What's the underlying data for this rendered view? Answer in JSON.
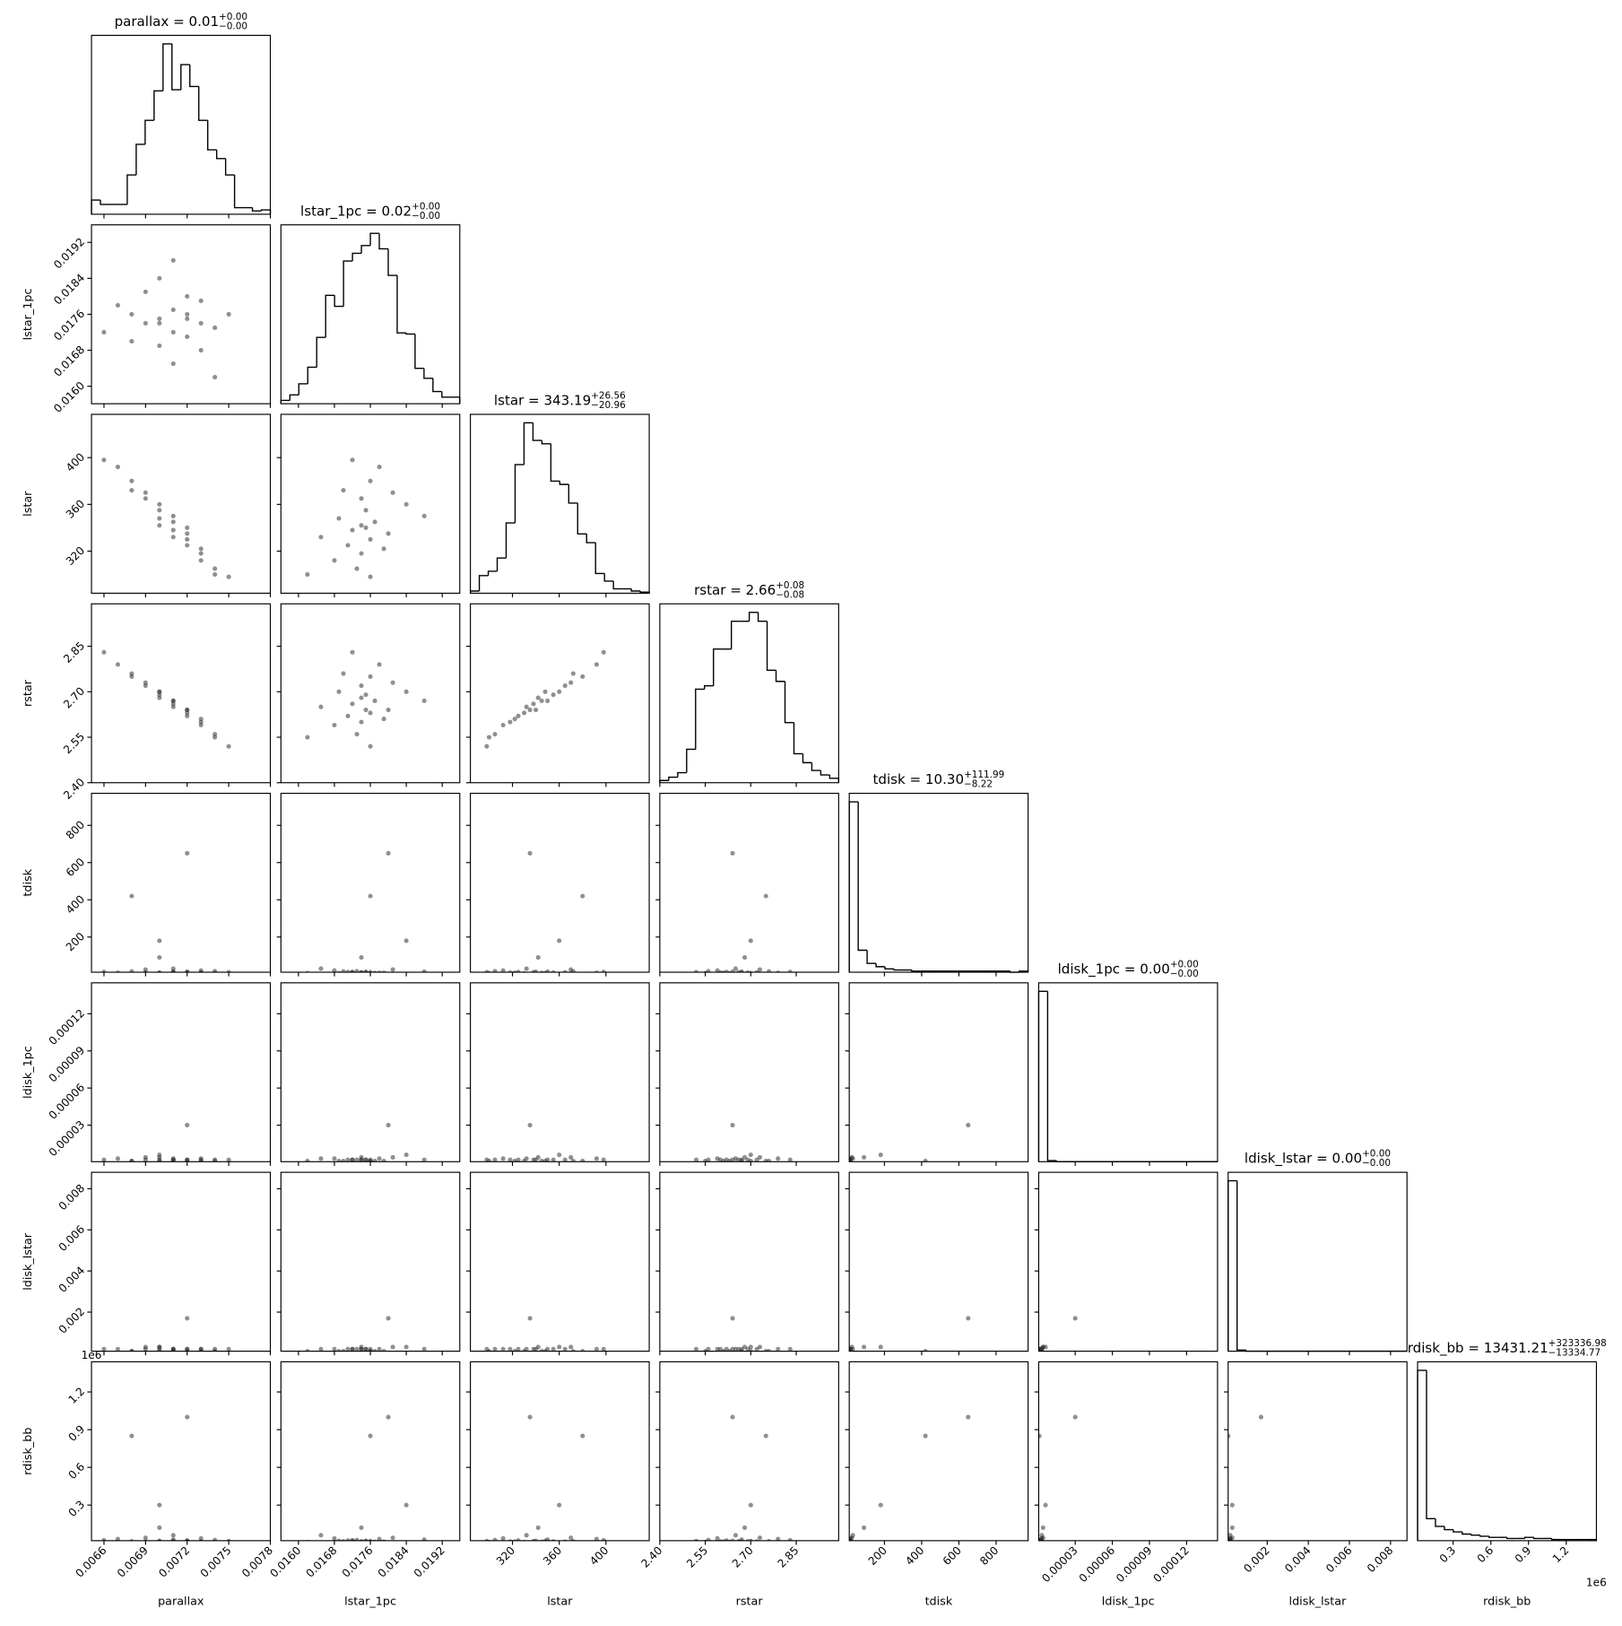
{
  "chart_data": {
    "type": "corner",
    "hist_bins": 20,
    "parameters": [
      {
        "label": "parallax",
        "title": "parallax = 0.01",
        "title_plus": "+0.00",
        "title_minus": "−0.00",
        "xlim": [
          0.00651,
          0.0078
        ],
        "ticks": [
          0.0066,
          0.0069,
          0.0072,
          0.0075,
          0.0078
        ],
        "hist_counts": [
          13,
          9,
          9,
          9,
          36,
          64,
          86,
          113,
          156,
          114,
          137,
          117,
          86,
          59,
          51,
          36,
          6,
          6,
          3,
          4
        ],
        "samples": [
          0.0066,
          0.0067,
          0.0068,
          0.0068,
          0.0069,
          0.0069,
          0.007,
          0.007,
          0.007,
          0.0071,
          0.0071,
          0.0071,
          0.0071,
          0.0072,
          0.0072,
          0.0072,
          0.0073,
          0.0073,
          0.0073,
          0.0074,
          0.0074,
          0.0075,
          0.007,
          0.0072
        ]
      },
      {
        "label": "lstar_1pc",
        "title": "lstar_1pc = 0.02",
        "title_plus": "+0.00",
        "title_minus": "−0.00",
        "xlim": [
          0.01561,
          0.01959
        ],
        "ticks": [
          {
            "value": 0.016,
            "label": "0.0160"
          },
          0.0168,
          0.0176,
          0.0184,
          0.0192
        ],
        "hist_counts": [
          3,
          8,
          18,
          33,
          60,
          98,
          88,
          129,
          136,
          143,
          154,
          140,
          116,
          64,
          63,
          32,
          23,
          11,
          6,
          6
        ],
        "samples": [
          0.0172,
          0.0178,
          0.017,
          0.0176,
          0.0174,
          0.0181,
          0.0169,
          0.0175,
          0.0184,
          0.0172,
          0.0177,
          0.0165,
          0.0188,
          0.0176,
          0.0171,
          0.018,
          0.0174,
          0.0168,
          0.0179,
          0.0173,
          0.0162,
          0.0176,
          0.0174,
          0.0175
        ]
      },
      {
        "label": "lstar",
        "title": "lstar = 343.19",
        "title_plus": "+26.56",
        "title_minus": "−20.96",
        "xlim": [
          284,
          437
        ],
        "ticks": [
          320,
          360,
          400
        ],
        "hist_counts": [
          2,
          16,
          20,
          32,
          64,
          117,
          155,
          139,
          136,
          102,
          99,
          82,
          54,
          46,
          18,
          11,
          4,
          4,
          2,
          1
        ],
        "samples": [
          398,
          392,
          372,
          380,
          365,
          370,
          348,
          355,
          360,
          338,
          345,
          332,
          350,
          330,
          325,
          335,
          318,
          312,
          322,
          305,
          300,
          298,
          342,
          340
        ]
      },
      {
        "label": "rstar",
        "title": "rstar = 2.66",
        "title_plus": "+0.08",
        "title_minus": "−0.08",
        "xlim": [
          2.4,
          2.99
        ],
        "ticks": [
          {
            "value": 2.4,
            "label": "2.40"
          },
          2.55,
          {
            "value": 2.7,
            "label": "2.70"
          },
          2.85
        ],
        "hist_counts": [
          2,
          5,
          9,
          30,
          84,
          87,
          120,
          120,
          145,
          145,
          153,
          145,
          101,
          91,
          54,
          26,
          18,
          11,
          7,
          4
        ],
        "samples": [
          2.83,
          2.79,
          2.76,
          2.75,
          2.72,
          2.73,
          2.7,
          2.69,
          2.7,
          2.66,
          2.67,
          2.65,
          2.67,
          2.63,
          2.62,
          2.64,
          2.6,
          2.59,
          2.61,
          2.56,
          2.55,
          2.52,
          2.68,
          2.64
        ]
      },
      {
        "label": "tdisk",
        "title": "tdisk = 10.30",
        "title_plus": "+111.99",
        "title_minus": "−8.22",
        "xlim": [
          11,
          972
        ],
        "ticks": [
          200,
          400,
          600,
          800
        ],
        "hist_counts": [
          155,
          20,
          8,
          5,
          3,
          2,
          2,
          1,
          1,
          1,
          1,
          1,
          1,
          1,
          1,
          1,
          1,
          1,
          0,
          1
        ],
        "samples": [
          12,
          8,
          15,
          420,
          10,
          25,
          6,
          9,
          180,
          11,
          7,
          30,
          14,
          5,
          12,
          650,
          9,
          20,
          8,
          16,
          6,
          11,
          90,
          13
        ]
      },
      {
        "label": "ldisk_1pc",
        "title": "ldisk_1pc = 0.00",
        "title_plus": "+0.00",
        "title_minus": "−0.00",
        "xlim": [
          5e-07,
          0.000145
        ],
        "ticks": [
          3e-05,
          6e-05,
          9e-05,
          0.00012
        ],
        "hist_counts": [
          155,
          1,
          0,
          0,
          0,
          0,
          0,
          0,
          0,
          0,
          0,
          0,
          0,
          0,
          0,
          0,
          0,
          0,
          0,
          0
        ],
        "samples": [
          2e-06,
          3e-06,
          1e-06,
          1e-06,
          2e-06,
          4e-06,
          1e-06,
          2e-06,
          6e-06,
          2e-06,
          1e-06,
          3e-06,
          2e-06,
          1e-06,
          2e-06,
          3e-05,
          2e-06,
          3e-06,
          1e-06,
          2e-06,
          1e-06,
          2e-06,
          4e-06,
          2e-06
        ]
      },
      {
        "label": "ldisk_lstar",
        "title": "ldisk_lstar = 0.00",
        "title_plus": "+0.00",
        "title_minus": "−0.00",
        "xlim": [
          0.0001,
          0.0088
        ],
        "ticks": [
          0.002,
          0.004,
          0.006,
          0.008
        ],
        "hist_counts": [
          155,
          1,
          0,
          0,
          0,
          0,
          0,
          0,
          0,
          0,
          0,
          0,
          0,
          0,
          0,
          0,
          0,
          0,
          0,
          0
        ],
        "samples": [
          0.0002,
          0.0002,
          0.0001,
          0.0001,
          0.0002,
          0.0003,
          0.0001,
          0.0002,
          0.0003,
          0.0002,
          0.0001,
          0.0002,
          0.0002,
          0.0001,
          0.0002,
          0.0017,
          0.0002,
          0.0002,
          0.0001,
          0.0002,
          0.0001,
          0.0002,
          0.0003,
          0.0002
        ]
      },
      {
        "label": "rdisk_bb",
        "title": "rdisk_bb = 13431.21",
        "title_plus": "+323336.98",
        "title_minus": "−13334.77",
        "xlim": [
          17000,
          1440000
        ],
        "offset_label": "1e6",
        "ticks": [
          {
            "value": 300000,
            "label": "0.3"
          },
          {
            "value": 600000,
            "label": "0.6"
          },
          {
            "value": 900000,
            "label": "0.9"
          },
          {
            "value": 1200000,
            "label": "1.2"
          }
        ],
        "hist_counts": [
          155,
          20,
          13,
          10,
          8,
          6,
          5,
          4,
          3,
          3,
          2,
          2,
          3,
          2,
          2,
          1,
          1,
          1,
          1,
          1
        ],
        "samples": [
          20000,
          30000,
          12000,
          850000,
          9000,
          40000,
          15000,
          11000,
          300000,
          13000,
          8000,
          60000,
          25000,
          7000,
          18000,
          1000000,
          10000,
          35000,
          9000,
          22000,
          6000,
          14000,
          120000,
          16000
        ]
      }
    ]
  }
}
